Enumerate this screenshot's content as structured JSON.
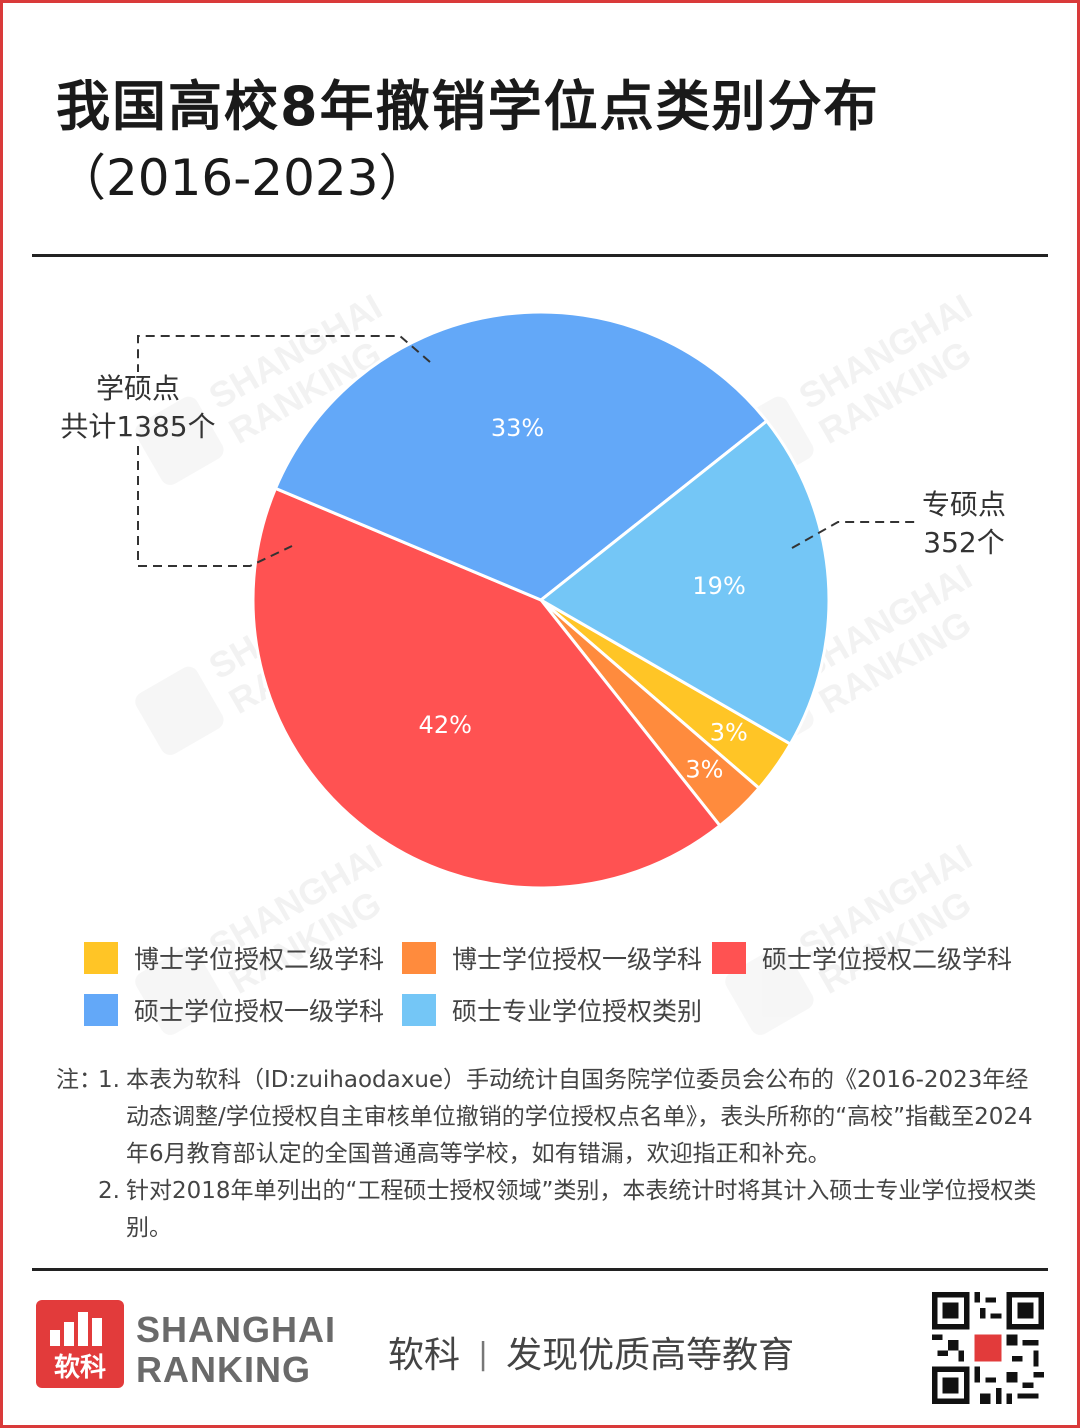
{
  "header": {
    "title": "我国高校8年撤销学位点类别分布",
    "subtitle": "（2016-2023）"
  },
  "chart_data": {
    "type": "pie",
    "slices": [
      {
        "name": "博士学位授权二级学科",
        "value": 3,
        "label": "3%",
        "color": "#FFC526"
      },
      {
        "name": "博士学位授权一级学科",
        "value": 3,
        "label": "3%",
        "color": "#FF8B3D"
      },
      {
        "name": "硕士学位授权二级学科",
        "value": 42,
        "label": "42%",
        "color": "#FF5252"
      },
      {
        "name": "硕士学位授权一级学科",
        "value": 33,
        "label": "33%",
        "color": "#63A8F8"
      },
      {
        "name": "硕士专业学位授权类别",
        "value": 19,
        "label": "19%",
        "color": "#74C6F6"
      }
    ],
    "annotations": [
      {
        "label_line1": "学硕点",
        "label_line2": "共计1385个"
      },
      {
        "label_line1": "专硕点",
        "label_line2": "352个"
      }
    ]
  },
  "notes": {
    "prefix": "注：",
    "items": [
      {
        "num": "1.",
        "text": "本表为软科（ID:zuihaodaxue）手动统计自国务院学位委员会公布的《2016-2023年经动态调整/学位授权自主审核单位撤销的学位授权点名单》，表头所称的“高校”指截至2024年6月教育部认定的全国普通高等学校，如有错漏，欢迎指正和补充。"
      },
      {
        "num": "2.",
        "text": "针对2018年单列出的“工程硕士授权领域”类别，本表统计时将其计入硕士专业学位授权类别。"
      }
    ]
  },
  "footer": {
    "logo_cn": "软科",
    "brand_line1": "SHANGHAI",
    "brand_line2": "RANKING",
    "slogan_left": "软科",
    "slogan_sep": "|",
    "slogan_right": "发现优质高等教育"
  },
  "watermark": {
    "line1": "SHANGHAI",
    "line2": "RANKING"
  }
}
